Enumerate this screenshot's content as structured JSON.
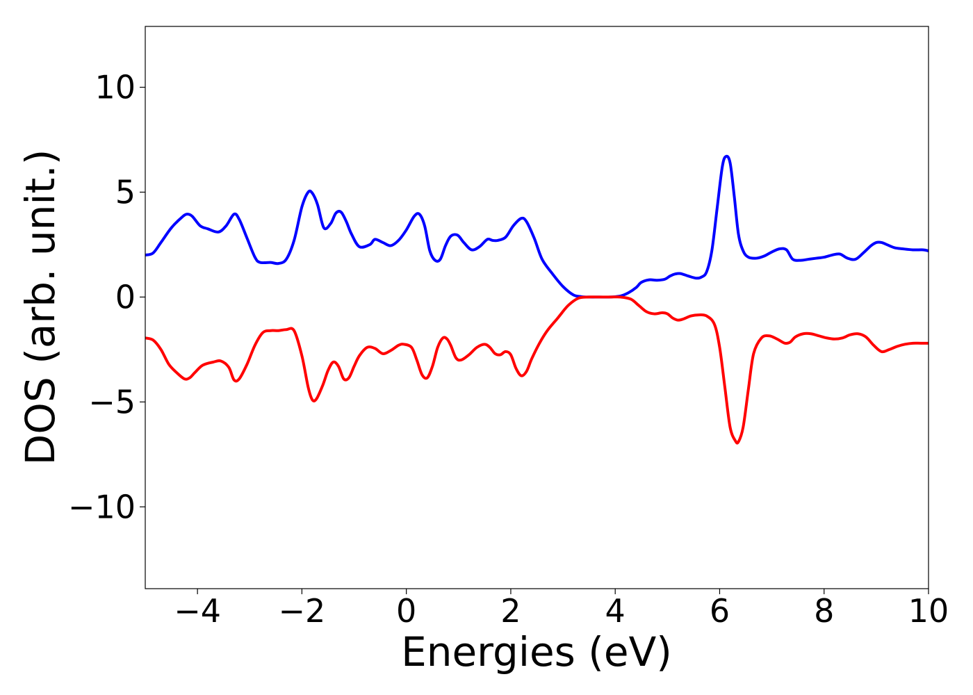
{
  "chart_data": {
    "type": "line",
    "title": "",
    "xlabel": "Energies (eV)",
    "ylabel": "DOS (arb. unit.)",
    "xlim": [
      -5,
      10
    ],
    "ylim": [
      -13.9,
      12.9
    ],
    "xticks": [
      {
        "value": -4,
        "label": "−4"
      },
      {
        "value": -2,
        "label": "−2"
      },
      {
        "value": 0,
        "label": "0"
      },
      {
        "value": 2,
        "label": "2"
      },
      {
        "value": 4,
        "label": "4"
      },
      {
        "value": 6,
        "label": "6"
      },
      {
        "value": 8,
        "label": "8"
      },
      {
        "value": 10,
        "label": "10"
      }
    ],
    "yticks": [
      {
        "value": 10,
        "label": "10"
      },
      {
        "value": 5,
        "label": "5"
      },
      {
        "value": 0,
        "label": "0"
      },
      {
        "value": -5,
        "label": "−5"
      },
      {
        "value": -10,
        "label": "−10"
      }
    ],
    "grid": false,
    "series": [
      {
        "color": "#0000ff",
        "x": [
          -5.0,
          -4.85,
          -4.7,
          -4.5,
          -4.3,
          -4.2,
          -4.1,
          -3.95,
          -3.8,
          -3.6,
          -3.45,
          -3.3,
          -3.2,
          -3.05,
          -2.9,
          -2.8,
          -2.6,
          -2.45,
          -2.3,
          -2.15,
          -2.0,
          -1.88,
          -1.8,
          -1.7,
          -1.58,
          -1.45,
          -1.35,
          -1.25,
          -1.15,
          -1.05,
          -0.9,
          -0.7,
          -0.6,
          -0.45,
          -0.3,
          -0.15,
          0.0,
          0.15,
          0.25,
          0.35,
          0.45,
          0.55,
          0.65,
          0.75,
          0.85,
          0.98,
          1.1,
          1.25,
          1.4,
          1.55,
          1.65,
          1.75,
          1.9,
          2.05,
          2.2,
          2.3,
          2.45,
          2.6,
          2.8,
          3.0,
          3.2,
          3.35,
          3.5,
          3.7,
          3.9,
          4.1,
          4.25,
          4.4,
          4.5,
          4.65,
          4.8,
          4.95,
          5.05,
          5.15,
          5.25,
          5.4,
          5.55,
          5.65,
          5.75,
          5.85,
          5.95,
          6.05,
          6.12,
          6.2,
          6.28,
          6.36,
          6.45,
          6.55,
          6.7,
          6.85,
          7.0,
          7.15,
          7.28,
          7.4,
          7.55,
          7.7,
          7.85,
          8.0,
          8.15,
          8.3,
          8.45,
          8.6,
          8.75,
          8.9,
          9.0,
          9.1,
          9.2,
          9.35,
          9.5,
          9.7,
          9.9,
          10.0
        ],
        "y": [
          2.0,
          2.1,
          2.6,
          3.3,
          3.8,
          3.95,
          3.85,
          3.4,
          3.25,
          3.1,
          3.4,
          3.95,
          3.7,
          2.8,
          1.9,
          1.65,
          1.65,
          1.6,
          1.8,
          2.7,
          4.3,
          5.0,
          4.95,
          4.4,
          3.3,
          3.5,
          4.0,
          4.05,
          3.6,
          3.0,
          2.4,
          2.5,
          2.75,
          2.6,
          2.45,
          2.7,
          3.2,
          3.85,
          3.95,
          3.4,
          2.2,
          1.75,
          1.8,
          2.45,
          2.9,
          2.95,
          2.6,
          2.25,
          2.4,
          2.75,
          2.7,
          2.7,
          2.85,
          3.4,
          3.75,
          3.6,
          2.8,
          1.8,
          1.1,
          0.5,
          0.1,
          0.02,
          0.0,
          0.0,
          0.0,
          0.05,
          0.2,
          0.45,
          0.7,
          0.82,
          0.8,
          0.85,
          1.0,
          1.1,
          1.12,
          1.0,
          0.9,
          0.95,
          1.2,
          2.2,
          4.2,
          6.2,
          6.7,
          6.4,
          4.8,
          3.0,
          2.2,
          1.9,
          1.85,
          1.95,
          2.15,
          2.3,
          2.25,
          1.8,
          1.75,
          1.8,
          1.85,
          1.9,
          2.0,
          2.05,
          1.85,
          1.8,
          2.1,
          2.45,
          2.6,
          2.6,
          2.5,
          2.35,
          2.3,
          2.25,
          2.25,
          2.2
        ]
      },
      {
        "color": "#ff0000",
        "x": [
          -5.0,
          -4.85,
          -4.7,
          -4.55,
          -4.4,
          -4.25,
          -4.15,
          -4.05,
          -3.9,
          -3.7,
          -3.55,
          -3.4,
          -3.3,
          -3.2,
          -3.05,
          -2.9,
          -2.75,
          -2.6,
          -2.45,
          -2.3,
          -2.15,
          -2.0,
          -1.88,
          -1.8,
          -1.72,
          -1.6,
          -1.5,
          -1.4,
          -1.3,
          -1.2,
          -1.1,
          -1.0,
          -0.9,
          -0.75,
          -0.6,
          -0.45,
          -0.3,
          -0.15,
          -0.05,
          0.1,
          0.2,
          0.3,
          0.4,
          0.5,
          0.6,
          0.7,
          0.78,
          0.85,
          0.95,
          1.05,
          1.2,
          1.35,
          1.5,
          1.6,
          1.7,
          1.8,
          1.9,
          2.0,
          2.1,
          2.2,
          2.3,
          2.4,
          2.55,
          2.7,
          2.9,
          3.1,
          3.3,
          3.5,
          3.7,
          3.9,
          4.1,
          4.3,
          4.45,
          4.6,
          4.75,
          4.9,
          5.0,
          5.1,
          5.2,
          5.3,
          5.45,
          5.6,
          5.75,
          5.9,
          6.0,
          6.1,
          6.2,
          6.3,
          6.36,
          6.45,
          6.55,
          6.65,
          6.8,
          6.95,
          7.1,
          7.25,
          7.35,
          7.45,
          7.6,
          7.75,
          7.9,
          8.05,
          8.2,
          8.35,
          8.5,
          8.65,
          8.8,
          8.95,
          9.1,
          9.25,
          9.4,
          9.55,
          9.7,
          9.85,
          10.0
        ],
        "y": [
          -1.95,
          -2.05,
          -2.5,
          -3.2,
          -3.6,
          -3.9,
          -3.85,
          -3.6,
          -3.25,
          -3.1,
          -3.05,
          -3.35,
          -3.95,
          -3.9,
          -3.2,
          -2.3,
          -1.7,
          -1.6,
          -1.6,
          -1.55,
          -1.6,
          -2.8,
          -4.3,
          -4.9,
          -4.85,
          -4.2,
          -3.5,
          -3.1,
          -3.3,
          -3.9,
          -3.85,
          -3.3,
          -2.8,
          -2.4,
          -2.45,
          -2.7,
          -2.55,
          -2.3,
          -2.25,
          -2.4,
          -3.0,
          -3.7,
          -3.85,
          -3.3,
          -2.4,
          -1.95,
          -2.0,
          -2.3,
          -2.9,
          -3.0,
          -2.75,
          -2.4,
          -2.25,
          -2.4,
          -2.7,
          -2.75,
          -2.6,
          -2.75,
          -3.4,
          -3.75,
          -3.55,
          -2.95,
          -2.2,
          -1.6,
          -1.0,
          -0.4,
          -0.05,
          0.0,
          0.0,
          0.0,
          0.0,
          -0.1,
          -0.4,
          -0.7,
          -0.8,
          -0.75,
          -0.8,
          -1.0,
          -1.1,
          -1.05,
          -0.9,
          -0.85,
          -0.9,
          -1.3,
          -2.4,
          -4.3,
          -6.2,
          -6.85,
          -6.9,
          -6.2,
          -4.4,
          -2.7,
          -1.95,
          -1.85,
          -2.0,
          -2.2,
          -2.15,
          -1.9,
          -1.75,
          -1.75,
          -1.85,
          -1.95,
          -2.0,
          -1.95,
          -1.8,
          -1.75,
          -1.9,
          -2.3,
          -2.6,
          -2.5,
          -2.35,
          -2.25,
          -2.2,
          -2.2,
          -2.2
        ]
      }
    ]
  }
}
